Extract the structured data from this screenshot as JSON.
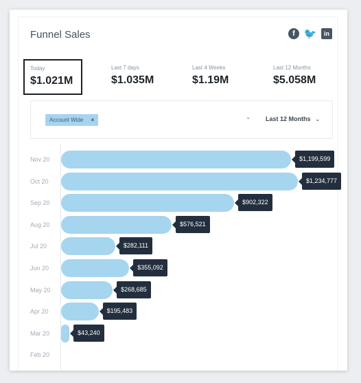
{
  "widget": {
    "title": "Funnel Sales",
    "social": [
      {
        "icon": "facebook-icon",
        "glyph": "f"
      },
      {
        "icon": "twitter-icon",
        "glyph": "🐦"
      },
      {
        "icon": "linkedin-icon",
        "glyph": "in"
      }
    ]
  },
  "stats": [
    {
      "label": "Today",
      "value": "$1.021M",
      "selected": true
    },
    {
      "label": "Last 7 days",
      "value": "$1.035M",
      "selected": false
    },
    {
      "label": "Last 4 Weeks",
      "value": "$1.19M",
      "selected": false
    },
    {
      "label": "Last 12 Months",
      "value": "$5.058M",
      "selected": false
    }
  ],
  "filter": {
    "chip_label": "Account Wide",
    "chip_remove": "×",
    "dropdown_caret": "⌄",
    "range_label": "Last 12 Months",
    "range_chevron": "⌄"
  },
  "colors": {
    "bar": "#a6d5ef",
    "tag": "#232f3e",
    "chip": "#a6d4ee"
  },
  "chart_data": {
    "type": "bar",
    "orientation": "horizontal",
    "categories": [
      "Nov 20",
      "Oct 20",
      "Sep 20",
      "Aug 20",
      "Jul 20",
      "Jun 20",
      "May 20",
      "Apr 20",
      "Mar 20",
      "Feb 20"
    ],
    "values": [
      1199599,
      1234777,
      902322,
      576521,
      282111,
      355092,
      268685,
      195483,
      43240,
      0
    ],
    "labels": [
      "$1,199,599",
      "$1,234,777",
      "$902,322",
      "$576,521",
      "$282,111",
      "$355,092",
      "$268,685",
      "$195,483",
      "$43,240",
      ""
    ],
    "xlim": [
      0,
      1234777
    ]
  }
}
